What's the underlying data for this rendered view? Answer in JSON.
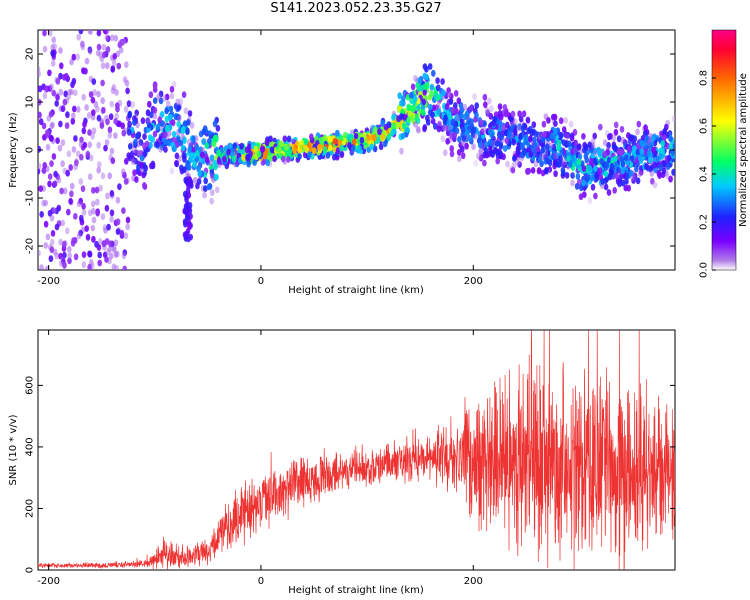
{
  "page": {
    "title": "S141.2023.052.23.35.G27"
  },
  "colors": {
    "snr_line": "#ee3333",
    "colormap": [
      "#ffffff",
      "#b07be8",
      "#7a00ff",
      "#2020ff",
      "#00ccff",
      "#00ff66",
      "#ffff00",
      "#ff6600",
      "#ff0033",
      "#ff0088"
    ]
  },
  "chart_data": [
    {
      "id": "spectrogram",
      "type": "heatmap",
      "xlabel": "Height of straight line (km)",
      "ylabel": "Frequency (Hz)",
      "xlim": [
        -210,
        390
      ],
      "ylim": [
        -25,
        25
      ],
      "x_ticks": [
        -200,
        0,
        200
      ],
      "y_ticks": [
        -20,
        -10,
        0,
        10,
        20
      ],
      "colorbar": {
        "label": "Normalized spectral amplitude",
        "range": [
          0,
          1
        ],
        "ticks": [
          "0.0",
          "0.2",
          "0.4",
          "0.6",
          "0.8"
        ]
      },
      "ridge": [
        {
          "x": -130,
          "freq": 5,
          "amp": 0.3
        },
        {
          "x": -110,
          "freq": 0,
          "amp": 0.3
        },
        {
          "x": -100,
          "freq": 5,
          "amp": 0.35
        },
        {
          "x": -80,
          "freq": 4,
          "amp": 0.35
        },
        {
          "x": -60,
          "freq": -2,
          "amp": 0.35
        },
        {
          "x": -40,
          "freq": -1,
          "amp": 0.5
        },
        {
          "x": -20,
          "freq": -1,
          "amp": 0.6
        },
        {
          "x": 0,
          "freq": -0.5,
          "amp": 0.8
        },
        {
          "x": 20,
          "freq": 0,
          "amp": 0.7
        },
        {
          "x": 40,
          "freq": 0.5,
          "amp": 0.7
        },
        {
          "x": 60,
          "freq": 1,
          "amp": 0.85
        },
        {
          "x": 80,
          "freq": 1.5,
          "amp": 0.75
        },
        {
          "x": 100,
          "freq": 2,
          "amp": 0.7
        },
        {
          "x": 120,
          "freq": 4,
          "amp": 0.75
        },
        {
          "x": 140,
          "freq": 8,
          "amp": 0.6
        },
        {
          "x": 160,
          "freq": 12,
          "amp": 0.5
        },
        {
          "x": 180,
          "freq": 6,
          "amp": 0.35
        },
        {
          "x": 200,
          "freq": 5,
          "amp": 0.35
        },
        {
          "x": 220,
          "freq": 3,
          "amp": 0.3
        },
        {
          "x": 240,
          "freq": 2,
          "amp": 0.3
        },
        {
          "x": 260,
          "freq": 0,
          "amp": 0.3
        },
        {
          "x": 280,
          "freq": 1,
          "amp": 0.35
        },
        {
          "x": 300,
          "freq": -4,
          "amp": 0.4
        },
        {
          "x": 320,
          "freq": -3,
          "amp": 0.4
        },
        {
          "x": 340,
          "freq": -2,
          "amp": 0.35
        },
        {
          "x": 360,
          "freq": -1,
          "amp": 0.35
        },
        {
          "x": 380,
          "freq": 0,
          "amp": 0.35
        }
      ]
    },
    {
      "id": "snr",
      "type": "line",
      "xlabel": "Height of straight line (km)",
      "ylabel": "SNR (10 * v/v)",
      "xlim": [
        -210,
        390
      ],
      "ylim": [
        0,
        780
      ],
      "x_ticks": [
        -200,
        0,
        200
      ],
      "y_ticks": [
        0,
        200,
        400,
        600
      ],
      "envelope": [
        {
          "x": -210,
          "mean": 15,
          "spread": 10
        },
        {
          "x": -150,
          "mean": 15,
          "spread": 10
        },
        {
          "x": -110,
          "mean": 20,
          "spread": 15
        },
        {
          "x": -90,
          "mean": 50,
          "spread": 60
        },
        {
          "x": -70,
          "mean": 40,
          "spread": 40
        },
        {
          "x": -50,
          "mean": 60,
          "spread": 50
        },
        {
          "x": -30,
          "mean": 150,
          "spread": 100
        },
        {
          "x": -10,
          "mean": 200,
          "spread": 120
        },
        {
          "x": 10,
          "mean": 240,
          "spread": 110
        },
        {
          "x": 30,
          "mean": 280,
          "spread": 110
        },
        {
          "x": 50,
          "mean": 300,
          "spread": 100
        },
        {
          "x": 70,
          "mean": 320,
          "spread": 80
        },
        {
          "x": 100,
          "mean": 340,
          "spread": 80
        },
        {
          "x": 130,
          "mean": 350,
          "spread": 80
        },
        {
          "x": 160,
          "mean": 360,
          "spread": 80
        },
        {
          "x": 180,
          "mean": 370,
          "spread": 150
        },
        {
          "x": 200,
          "mean": 360,
          "spread": 250
        },
        {
          "x": 240,
          "mean": 350,
          "spread": 350
        },
        {
          "x": 280,
          "mean": 340,
          "spread": 380
        },
        {
          "x": 320,
          "mean": 330,
          "spread": 380
        },
        {
          "x": 360,
          "mean": 320,
          "spread": 320
        },
        {
          "x": 390,
          "mean": 310,
          "spread": 280
        }
      ]
    }
  ]
}
